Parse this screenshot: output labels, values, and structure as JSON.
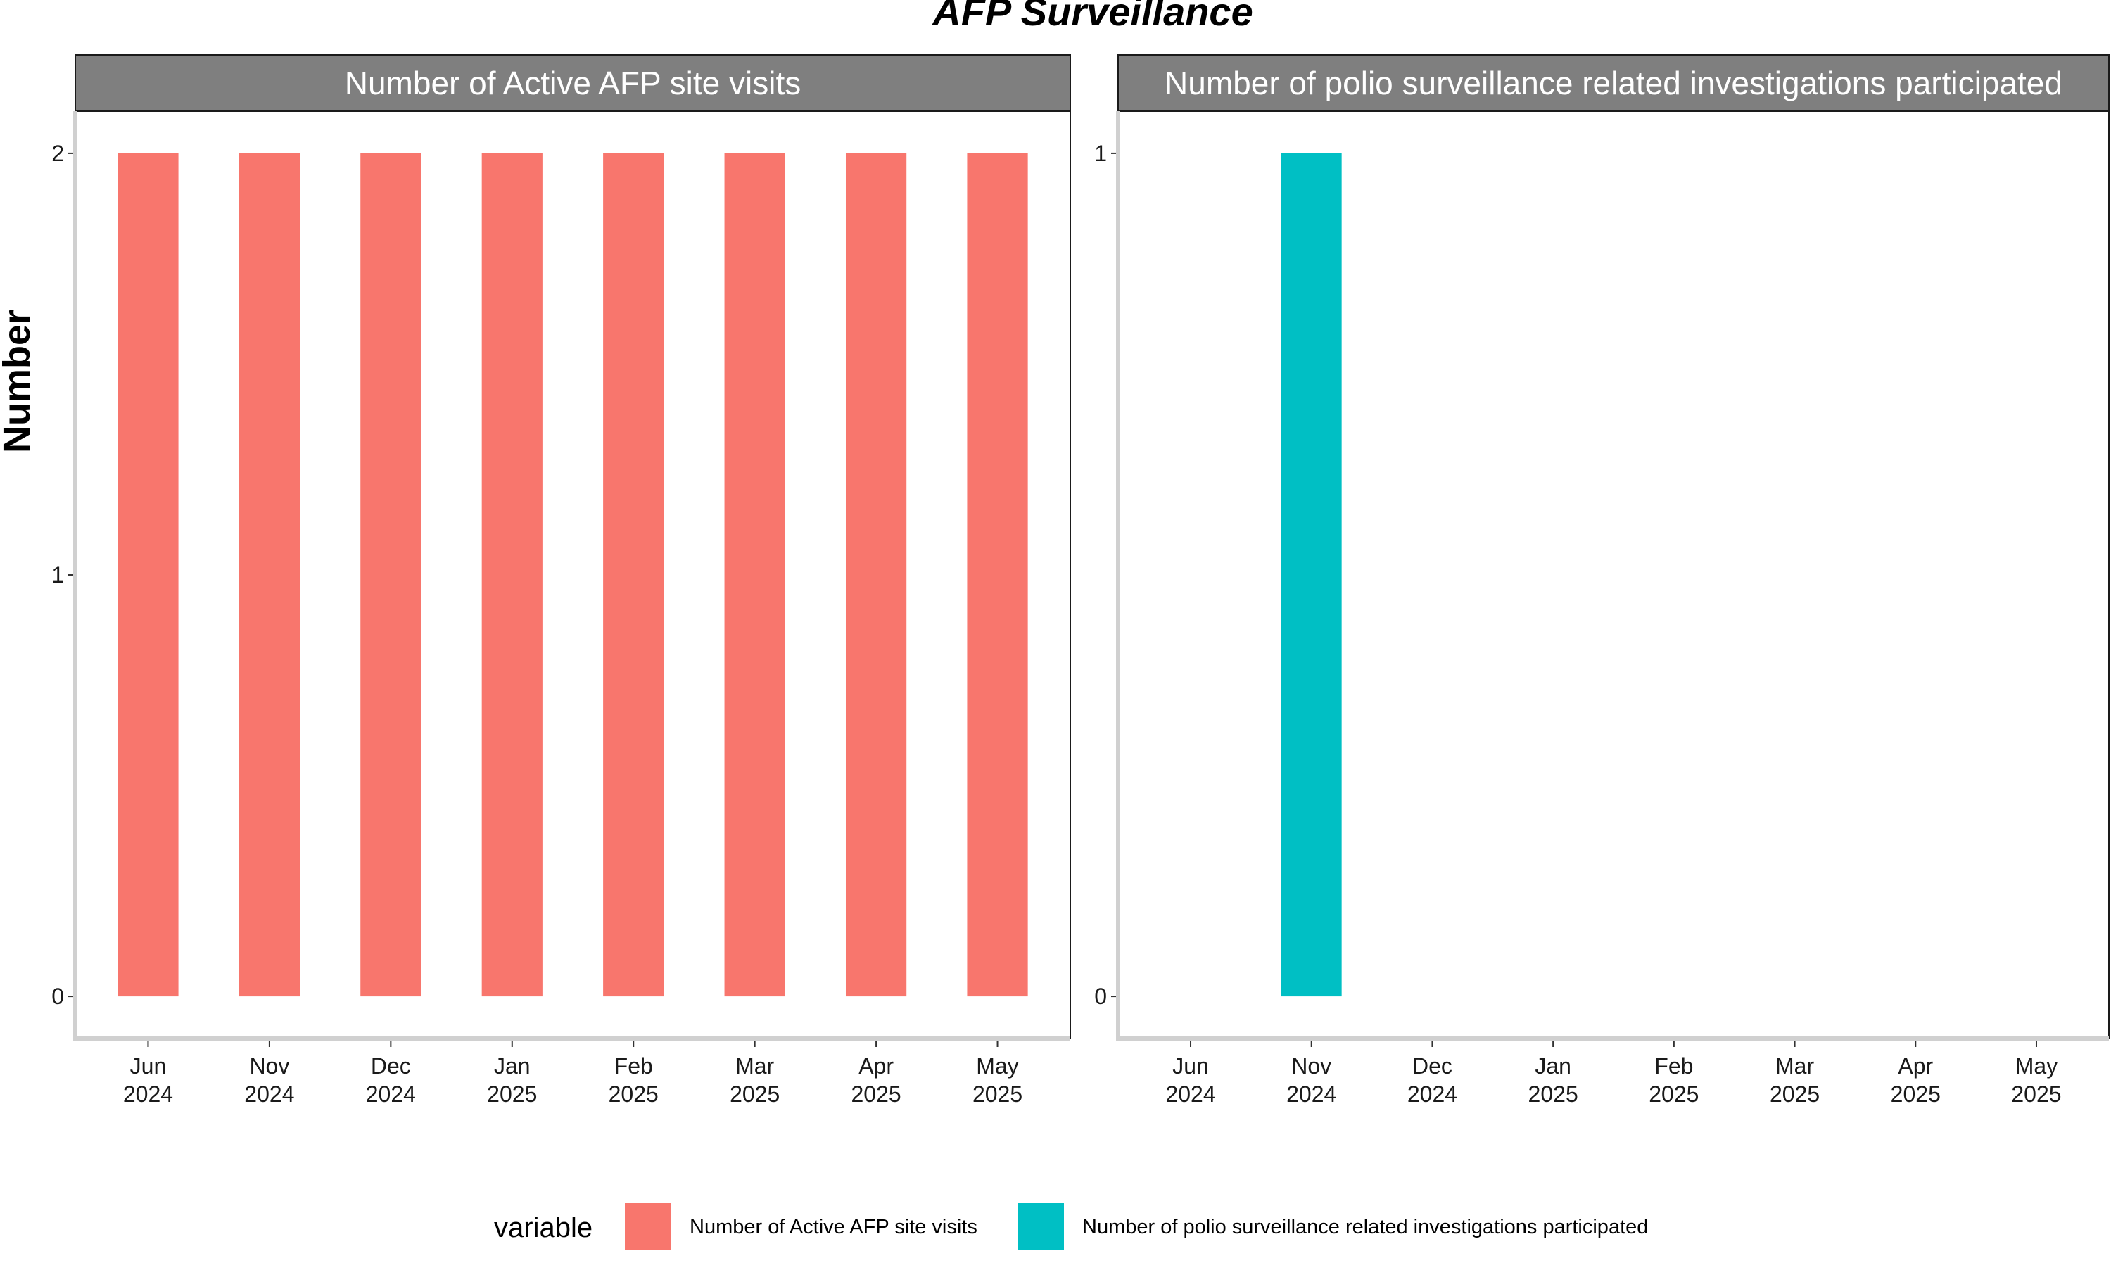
{
  "chart_data": {
    "type": "bar",
    "title": "AFP Surveillance",
    "ylabel": "Number",
    "xlabel": "",
    "categories": [
      [
        "Jun",
        "2024"
      ],
      [
        "Nov",
        "2024"
      ],
      [
        "Dec",
        "2024"
      ],
      [
        "Jan",
        "2025"
      ],
      [
        "Feb",
        "2025"
      ],
      [
        "Mar",
        "2025"
      ],
      [
        "Apr",
        "2025"
      ],
      [
        "May",
        "2025"
      ]
    ],
    "facets": [
      {
        "strip_label": "Number of Active AFP site visits",
        "series": "Number of Active AFP site visits",
        "values": [
          2,
          2,
          2,
          2,
          2,
          2,
          2,
          2
        ],
        "ylim": [
          -0.1,
          2.1
        ],
        "y_ticks": [
          0,
          1,
          2
        ]
      },
      {
        "strip_label": "Number of polio surveillance related investigations participated",
        "series": "Number of polio surveillance related investigations participated",
        "values": [
          0,
          1,
          0,
          0,
          0,
          0,
          0,
          0
        ],
        "ylim": [
          -0.05,
          1.05
        ],
        "y_ticks": [
          0,
          1
        ]
      }
    ],
    "series": [
      {
        "name": "Number of Active AFP site visits",
        "color": "#F8766D"
      },
      {
        "name": "Number of polio surveillance related investigations participated",
        "color": "#00BFC4"
      }
    ],
    "legend": {
      "title": "variable",
      "position": "bottom"
    },
    "grid": false,
    "colors": {
      "strip_fill": "#7f7f7f",
      "strip_border": "#1a1a1a",
      "axis_line": "#d0d0d0",
      "panel_border": "#1a1a1a"
    }
  }
}
